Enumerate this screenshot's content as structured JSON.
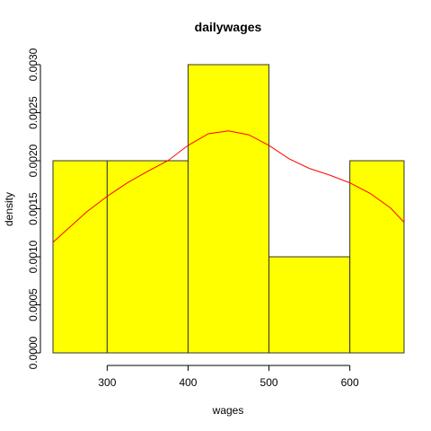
{
  "chart_data": {
    "type": "bar",
    "title": "dailywages",
    "xlabel": "wages",
    "ylabel": "density",
    "bins": [
      {
        "from": 200,
        "to": 300,
        "value": 0.002
      },
      {
        "from": 300,
        "to": 400,
        "value": 0.002
      },
      {
        "from": 400,
        "to": 500,
        "value": 0.003
      },
      {
        "from": 500,
        "to": 600,
        "value": 0.001
      },
      {
        "from": 600,
        "to": 700,
        "value": 0.002
      }
    ],
    "xlim": [
      233,
      667
    ],
    "ylim": [
      0,
      0.003
    ],
    "x_ticks": [
      300,
      400,
      500,
      600
    ],
    "x_tick_labels": [
      "300",
      "400",
      "500",
      "600"
    ],
    "y_ticks": [
      0,
      0.0005,
      0.001,
      0.0015,
      0.002,
      0.0025,
      0.003
    ],
    "y_tick_labels": [
      "0.0000",
      "0.0005",
      "0.0010",
      "0.0015",
      "0.0020",
      "0.0025",
      "0.0030"
    ],
    "density_curve": {
      "x": [
        233,
        250,
        275,
        300,
        325,
        350,
        375,
        400,
        425,
        450,
        475,
        500,
        525,
        550,
        575,
        600,
        625,
        650,
        667
      ],
      "y": [
        0.00115,
        0.00128,
        0.00147,
        0.00163,
        0.00177,
        0.00189,
        0.002,
        0.00216,
        0.00228,
        0.00231,
        0.00227,
        0.00216,
        0.00202,
        0.00192,
        0.00185,
        0.00177,
        0.00166,
        0.00151,
        0.00136
      ]
    },
    "colors": {
      "bar_fill": "#ffff00",
      "bar_edge": "#333333",
      "curve": "#ff0000"
    },
    "grid": false
  }
}
